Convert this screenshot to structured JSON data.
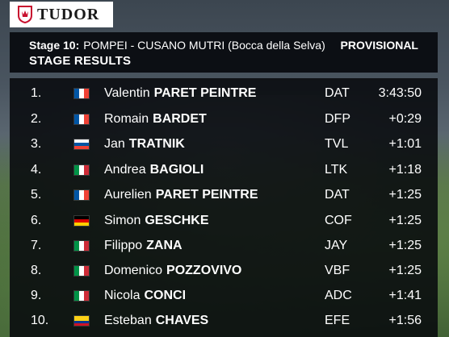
{
  "brand": {
    "name": "TUDOR"
  },
  "header": {
    "stage_label": "Stage 10:",
    "stage_route": "POMPEI - CUSANO MUTRI (Bocca della Selva)",
    "status": "PROVISIONAL",
    "title": "STAGE RESULTS"
  },
  "results": [
    {
      "pos": "1.",
      "flag": "france-flag-icon",
      "first": "Valentin",
      "last": "PARET PEINTRE",
      "team": "DAT",
      "time": "3:43:50"
    },
    {
      "pos": "2.",
      "flag": "france-flag-icon",
      "first": "Romain",
      "last": "BARDET",
      "team": "DFP",
      "time": "+0:29"
    },
    {
      "pos": "3.",
      "flag": "slovenia-flag-icon",
      "first": "Jan",
      "last": "TRATNIK",
      "team": "TVL",
      "time": "+1:01"
    },
    {
      "pos": "4.",
      "flag": "italy-flag-icon",
      "first": "Andrea",
      "last": "BAGIOLI",
      "team": "LTK",
      "time": "+1:18"
    },
    {
      "pos": "5.",
      "flag": "france-flag-icon",
      "first": "Aurelien",
      "last": "PARET PEINTRE",
      "team": "DAT",
      "time": "+1:25"
    },
    {
      "pos": "6.",
      "flag": "germany-flag-icon",
      "first": "Simon",
      "last": "GESCHKE",
      "team": "COF",
      "time": "+1:25"
    },
    {
      "pos": "7.",
      "flag": "italy-flag-icon",
      "first": "Filippo",
      "last": "ZANA",
      "team": "JAY",
      "time": "+1:25"
    },
    {
      "pos": "8.",
      "flag": "italy-flag-icon",
      "first": "Domenico",
      "last": "POZZOVIVO",
      "team": "VBF",
      "time": "+1:25"
    },
    {
      "pos": "9.",
      "flag": "italy-flag-icon",
      "first": "Nicola",
      "last": "CONCI",
      "team": "ADC",
      "time": "+1:41"
    },
    {
      "pos": "10.",
      "flag": "colombia-flag-icon",
      "first": "Esteban",
      "last": "CHAVES",
      "team": "EFE",
      "time": "+1:56"
    }
  ],
  "colors": {
    "panel": "#080a0e",
    "text": "#ffffff",
    "brand_red": "#c8102e"
  }
}
